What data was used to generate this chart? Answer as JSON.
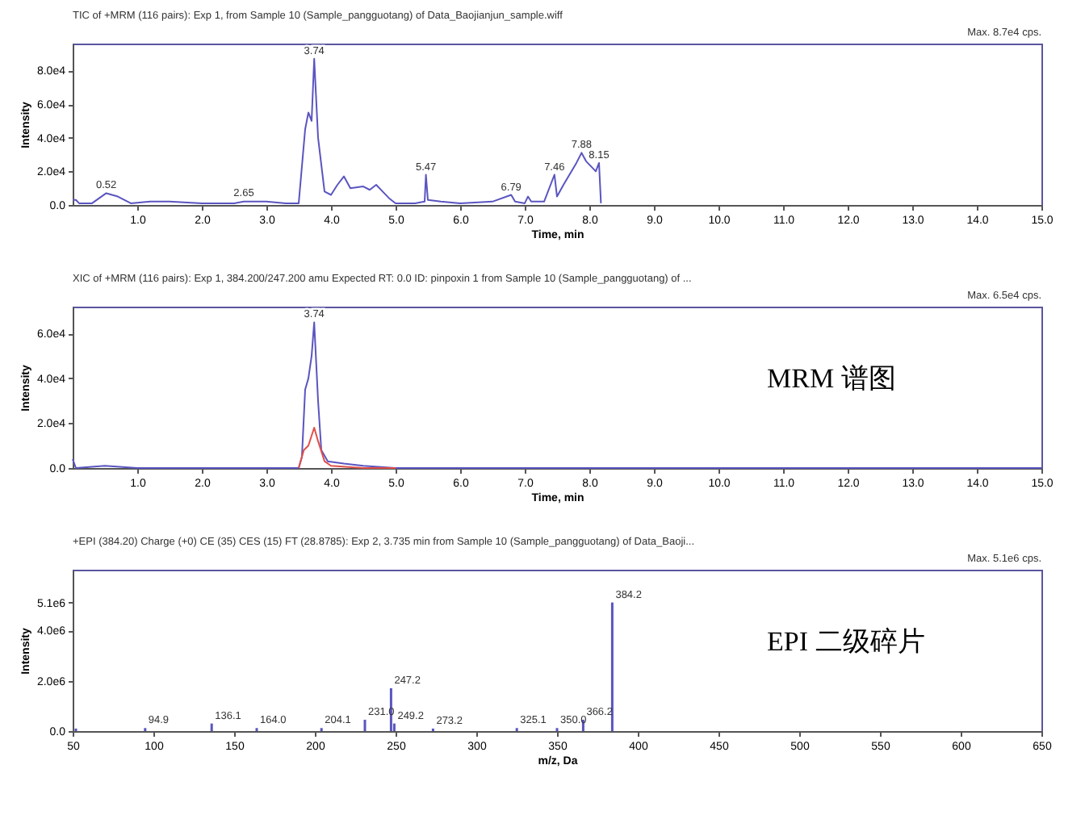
{
  "chart_data": [
    {
      "type": "line",
      "title": "TIC of +MRM (116 pairs): Exp 1, from Sample 10 (Sample_pangguotang) of Data_Baojianjun_sample.wiff",
      "subtitle": "Max. 8.7e4 cps.",
      "xlabel": "Time, min",
      "ylabel": "Intensity",
      "xlim": [
        0,
        15
      ],
      "ylim": [
        0,
        96000
      ],
      "xticks": [
        {
          "value": 1,
          "label": "1.0"
        },
        {
          "value": 2,
          "label": "2.0"
        },
        {
          "value": 3,
          "label": "3.0"
        },
        {
          "value": 4,
          "label": "4.0"
        },
        {
          "value": 5,
          "label": "5.0"
        },
        {
          "value": 6,
          "label": "6.0"
        },
        {
          "value": 7,
          "label": "7.0"
        },
        {
          "value": 8,
          "label": "8.0"
        },
        {
          "value": 9,
          "label": "9.0"
        },
        {
          "value": 10,
          "label": "10.0"
        },
        {
          "value": 11,
          "label": "11.0"
        },
        {
          "value": 12,
          "label": "12.0"
        },
        {
          "value": 13,
          "label": "13.0"
        },
        {
          "value": 14,
          "label": "14.0"
        },
        {
          "value": 15,
          "label": "15.0"
        }
      ],
      "yticks": [
        {
          "value": 0,
          "label": "0.0"
        },
        {
          "value": 20000,
          "label": "2.0e4"
        },
        {
          "value": 40000,
          "label": "4.0e4"
        },
        {
          "value": 60000,
          "label": "6.0e4"
        },
        {
          "value": 80000,
          "label": "8.0e4"
        }
      ],
      "grid": false,
      "x": [
        0.0,
        0.05,
        0.1,
        0.3,
        0.52,
        0.7,
        0.9,
        1.2,
        1.5,
        2.0,
        2.5,
        2.65,
        3.0,
        3.3,
        3.5,
        3.6,
        3.65,
        3.7,
        3.74,
        3.8,
        3.9,
        4.0,
        4.1,
        4.2,
        4.3,
        4.5,
        4.6,
        4.7,
        4.8,
        4.9,
        5.0,
        5.3,
        5.45,
        5.47,
        5.5,
        5.7,
        6.0,
        6.5,
        6.79,
        6.85,
        7.0,
        7.05,
        7.1,
        7.3,
        7.46,
        7.5,
        7.6,
        7.8,
        7.88,
        7.95,
        8.05,
        8.1,
        8.15,
        8.18
      ],
      "series": [
        {
          "color": "#5a55c0",
          "values": [
            3000,
            3000,
            1000,
            1000,
            7000,
            5000,
            1000,
            2000,
            2000,
            1000,
            1000,
            2000,
            2000,
            1000,
            1000,
            45000,
            55000,
            50000,
            87000,
            40000,
            8000,
            6000,
            12000,
            17000,
            10000,
            11000,
            9000,
            12000,
            8000,
            4000,
            1000,
            1000,
            2000,
            18000,
            3000,
            2000,
            1000,
            2000,
            6000,
            2000,
            1000,
            5000,
            2000,
            2000,
            18000,
            5000,
            12000,
            25000,
            31000,
            26000,
            22000,
            20000,
            25000,
            1000
          ]
        }
      ],
      "annotations": [
        {
          "text": "0.52",
          "x": 0.52,
          "y": 7000
        },
        {
          "text": "2.65",
          "x": 2.65,
          "y": 2500
        },
        {
          "text": "3.74",
          "x": 3.74,
          "y": 87000
        },
        {
          "text": "5.47",
          "x": 5.47,
          "y": 18000
        },
        {
          "text": "6.79",
          "x": 6.79,
          "y": 6000
        },
        {
          "text": "7.46",
          "x": 7.46,
          "y": 18000
        },
        {
          "text": "7.88",
          "x": 7.88,
          "y": 31000
        },
        {
          "text": "8.15",
          "x": 8.15,
          "y": 25000
        }
      ]
    },
    {
      "type": "line",
      "title": "XIC of +MRM (116 pairs): Exp 1, 384.200/247.200 amu Expected RT: 0.0 ID: pinpoxin 1 from Sample 10 (Sample_pangguotang) of ...",
      "subtitle": "Max. 6.5e4 cps.",
      "xlabel": "Time, min",
      "ylabel": "Intensity",
      "xlim": [
        0,
        15
      ],
      "ylim": [
        0,
        72000
      ],
      "xticks": [
        {
          "value": 1,
          "label": "1.0"
        },
        {
          "value": 2,
          "label": "2.0"
        },
        {
          "value": 3,
          "label": "3.0"
        },
        {
          "value": 4,
          "label": "4.0"
        },
        {
          "value": 5,
          "label": "5.0"
        },
        {
          "value": 6,
          "label": "6.0"
        },
        {
          "value": 7,
          "label": "7.0"
        },
        {
          "value": 8,
          "label": "8.0"
        },
        {
          "value": 9,
          "label": "9.0"
        },
        {
          "value": 10,
          "label": "10.0"
        },
        {
          "value": 11,
          "label": "11.0"
        },
        {
          "value": 12,
          "label": "12.0"
        },
        {
          "value": 13,
          "label": "13.0"
        },
        {
          "value": 14,
          "label": "14.0"
        },
        {
          "value": 15,
          "label": "15.0"
        }
      ],
      "yticks": [
        {
          "value": 0,
          "label": "0.0"
        },
        {
          "value": 20000,
          "label": "2.0e4"
        },
        {
          "value": 40000,
          "label": "4.0e4"
        },
        {
          "value": 60000,
          "label": "6.0e4"
        }
      ],
      "grid": false,
      "series": [
        {
          "color": "#5a55c0",
          "x": [
            0.0,
            0.05,
            0.5,
            1.0,
            3.5,
            3.55,
            3.6,
            3.65,
            3.7,
            3.74,
            3.8,
            3.85,
            3.95,
            4.2,
            4.5,
            5.0,
            15.0
          ],
          "values": [
            4000,
            0,
            1000,
            0,
            0,
            5000,
            35000,
            40000,
            50000,
            65000,
            30000,
            8000,
            3000,
            2000,
            1000,
            0,
            0
          ]
        },
        {
          "color": "#e0504a",
          "x": [
            3.5,
            3.58,
            3.65,
            3.74,
            3.8,
            3.9,
            4.0,
            4.5,
            5.0
          ],
          "values": [
            0,
            8000,
            10000,
            18000,
            12000,
            3000,
            1000,
            0,
            0
          ]
        }
      ],
      "annotations": [
        {
          "text": "3.74",
          "x": 3.74,
          "y": 65000
        },
        "MRM 谱图"
      ]
    },
    {
      "type": "bar",
      "title": "+EPI (384.20) Charge (+0) CE (35) CES (15) FT (28.8785): Exp 2, 3.735 min from Sample 10 (Sample_pangguotang) of Data_Baoji...",
      "subtitle": "Max. 5.1e6 cps.",
      "xlabel": "m/z, Da",
      "ylabel": "Intensity",
      "xlim": [
        50,
        650
      ],
      "ylim": [
        0,
        6400000
      ],
      "xticks": [
        50,
        100,
        150,
        200,
        250,
        300,
        350,
        400,
        450,
        500,
        550,
        600,
        650
      ],
      "yticks": [
        {
          "value": 0,
          "label": "0.0"
        },
        {
          "value": 2000000,
          "label": "2.0e6"
        },
        {
          "value": 4000000,
          "label": "4.0e6"
        },
        {
          "value": 5100000,
          "label": "5.1e6"
        }
      ],
      "grid": false,
      "x": [
        52,
        94.9,
        136.1,
        164.0,
        204.1,
        231.0,
        247.2,
        249.2,
        273.2,
        325.1,
        350.0,
        366.2,
        384.2
      ],
      "series": [
        {
          "color": "#5a55c0",
          "values": [
            100000,
            120000,
            300000,
            120000,
            120000,
            450000,
            1700000,
            300000,
            100000,
            120000,
            120000,
            450000,
            5100000
          ]
        }
      ],
      "annotations": [
        {
          "text": "94.9",
          "x": 94.9,
          "y": 120000
        },
        {
          "text": "136.1",
          "x": 136.1,
          "y": 300000
        },
        {
          "text": "164.0",
          "x": 164.0,
          "y": 120000
        },
        {
          "text": "204.1",
          "x": 204.1,
          "y": 120000
        },
        {
          "text": "231.0",
          "x": 231.0,
          "y": 450000
        },
        {
          "text": "247.2",
          "x": 247.2,
          "y": 1700000
        },
        {
          "text": "249.2",
          "x": 249.2,
          "y": 300000
        },
        {
          "text": "273.2",
          "x": 273.2,
          "y": 100000
        },
        {
          "text": "325.1",
          "x": 325.1,
          "y": 120000
        },
        {
          "text": "350.0",
          "x": 350.0,
          "y": 120000
        },
        {
          "text": "366.2",
          "x": 366.2,
          "y": 450000
        },
        {
          "text": "384.2",
          "x": 384.2,
          "y": 5100000
        },
        "EPI 二级碎片"
      ]
    }
  ]
}
